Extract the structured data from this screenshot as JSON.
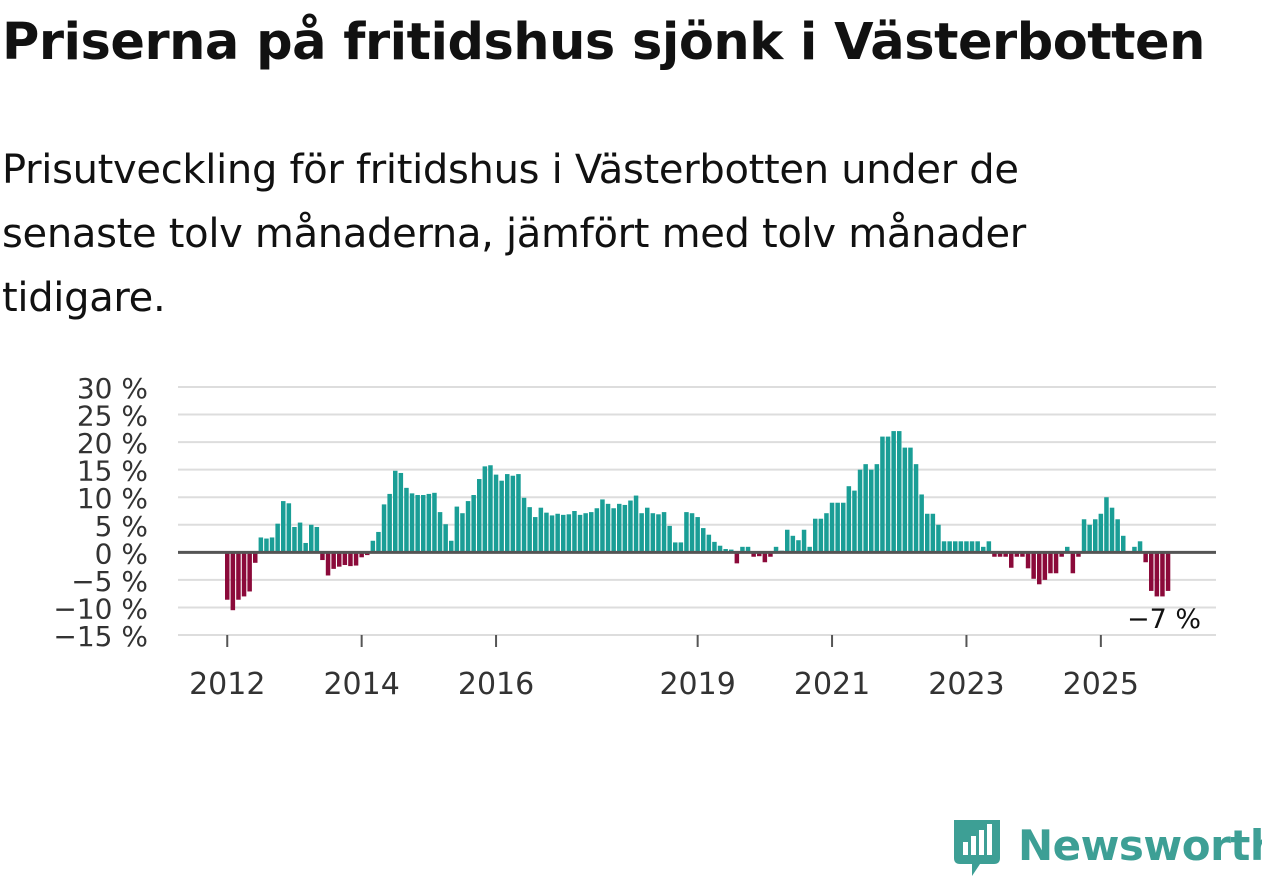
{
  "title": "Priserna på fritidshus sjönk i Västerbotten",
  "subtitle": "Prisutveckling för fritidshus i Västerbotten under de senaste tolv månaderna, jämfört med tolv månader tidigare.",
  "colors": {
    "positive": "#1a9e96",
    "negative": "#8b0a3a",
    "grid": "#dddddd",
    "zero_line": "#555555",
    "text": "#111111",
    "axis_text": "#333333",
    "brand": "#3d9f95"
  },
  "chart_data": {
    "type": "bar",
    "title": "",
    "xlabel": "",
    "ylabel": "",
    "ylim": [
      -15,
      30
    ],
    "y_ticks": [
      30,
      25,
      20,
      15,
      10,
      5,
      0,
      -5,
      -10,
      -15
    ],
    "y_tick_labels": [
      "30 %",
      "25 %",
      "20 %",
      "15 %",
      "10 %",
      "5 %",
      "0 %",
      "−5 %",
      "−10 %",
      "−15 %"
    ],
    "x_tick_labels": [
      "2012",
      "2014",
      "2016",
      "2019",
      "2021",
      "2023",
      "2025"
    ],
    "x_tick_positions": [
      0,
      24,
      48,
      84,
      108,
      132,
      156
    ],
    "x_start": "2012-01",
    "grid": true,
    "last_value_label": "−7 %",
    "values": [
      -8.6,
      -10.5,
      -8.6,
      -8.0,
      -7.1,
      -1.9,
      2.7,
      2.5,
      2.7,
      5.2,
      9.3,
      8.9,
      4.6,
      5.4,
      1.7,
      5.0,
      4.6,
      -1.4,
      -4.2,
      -3.0,
      -2.6,
      -2.3,
      -2.5,
      -2.4,
      -0.9,
      -0.5,
      2.1,
      3.7,
      8.7,
      10.6,
      14.8,
      14.4,
      11.7,
      10.7,
      10.4,
      10.4,
      10.6,
      10.8,
      7.3,
      5.1,
      2.1,
      8.3,
      7.1,
      9.3,
      10.4,
      13.3,
      15.6,
      15.8,
      14.1,
      13.0,
      14.2,
      13.9,
      14.2,
      9.9,
      8.2,
      6.4,
      8.1,
      7.2,
      6.7,
      7.0,
      6.8,
      6.9,
      7.5,
      6.8,
      7.1,
      7.3,
      8.0,
      9.6,
      8.8,
      8.0,
      8.8,
      8.6,
      9.4,
      10.3,
      7.1,
      8.1,
      7.1,
      6.9,
      7.3,
      4.8,
      1.8,
      1.8,
      7.3,
      7.1,
      6.4,
      4.4,
      3.2,
      1.9,
      1.2,
      0.6,
      0.5,
      -2.0,
      1.0,
      1.0,
      -0.8,
      -0.7,
      -1.8,
      -0.8,
      1.0,
      0.3,
      4.1,
      3.0,
      2.2,
      4.1,
      1.0,
      6.1,
      6.1,
      7.1,
      9.0,
      9.0,
      9.0,
      12.0,
      11.2,
      15.0,
      16.0,
      15.0,
      16.0,
      21.0,
      21.0,
      22.0,
      22.0,
      19.0,
      19.0,
      16.0,
      10.5,
      7.0,
      7.0,
      5.0,
      2.0,
      2.0,
      2.0,
      2.0,
      2.0,
      2.0,
      2.0,
      1.0,
      2.0,
      -0.8,
      -0.8,
      -0.8,
      -2.8,
      -0.8,
      -0.8,
      -2.9,
      -4.8,
      -5.8,
      -5.0,
      -3.8,
      -3.8,
      -0.8,
      1.0,
      -3.8,
      -0.8,
      6.0,
      5.0,
      6.0,
      7.0,
      10.0,
      8.1,
      6.0,
      3.0,
      0.0,
      1.0,
      2.0,
      -1.8,
      -7.0,
      -8.0,
      -8.0,
      -7.0
    ]
  },
  "logo": {
    "name": "Newsworthy"
  }
}
